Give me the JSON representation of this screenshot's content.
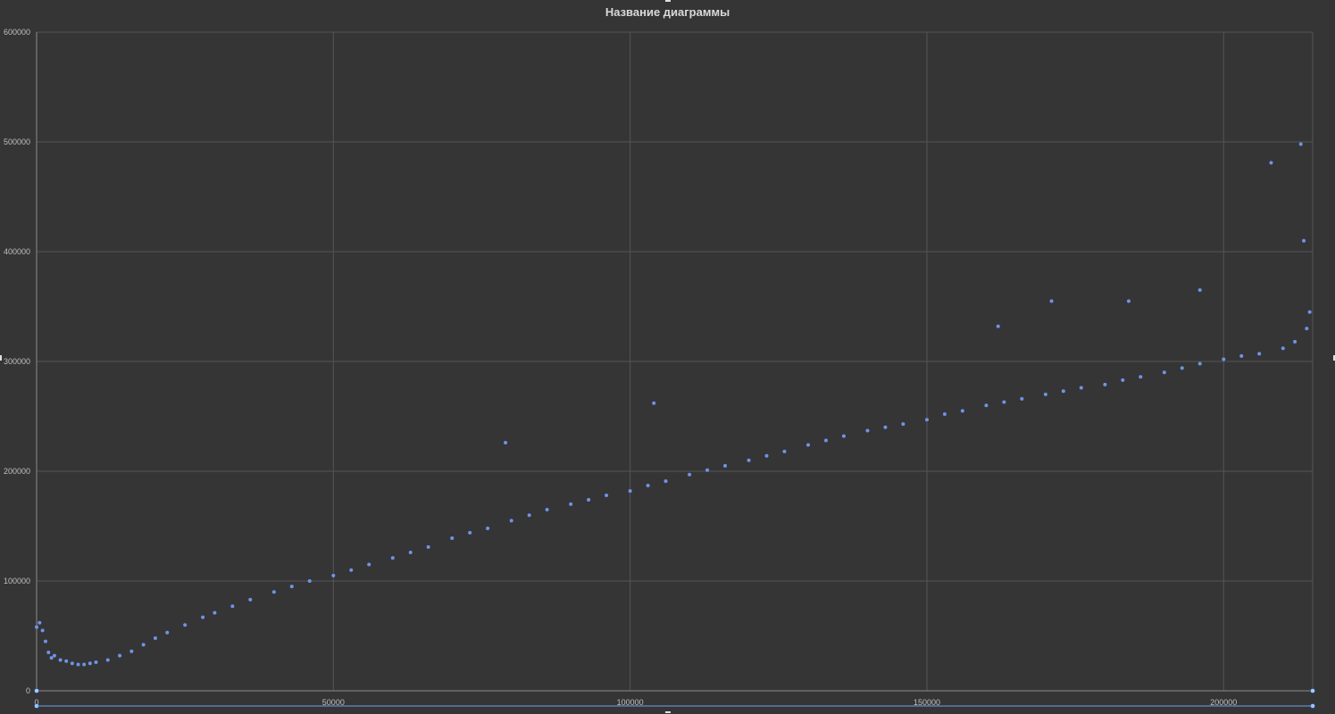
{
  "chart_data": {
    "type": "scatter",
    "title": "Название диаграммы",
    "xlabel": "",
    "ylabel": "",
    "xlim": [
      0,
      215000
    ],
    "ylim": [
      0,
      600000
    ],
    "x_ticks": [
      0,
      50000,
      100000,
      150000,
      200000
    ],
    "y_ticks": [
      0,
      100000,
      200000,
      300000,
      400000,
      500000,
      600000
    ],
    "x_tick_labels": [
      "0",
      "50000",
      "100000",
      "150000",
      "200000"
    ],
    "y_tick_labels": [
      "0",
      "100000",
      "200000",
      "300000",
      "400000",
      "500000",
      "600000"
    ],
    "grid": true,
    "legend": "none",
    "marker_color": "#6f94e8",
    "background_color": "#353535",
    "series": [
      {
        "x": [
          0,
          500,
          1000,
          1500,
          2000,
          2500,
          3000,
          4000,
          5000,
          6000,
          7000,
          8000,
          9000,
          10000,
          12000,
          14000,
          16000,
          18000,
          20000,
          22000,
          25000,
          28000,
          30000,
          33000,
          36000,
          40000,
          43000,
          46000,
          50000,
          53000,
          56000,
          60000,
          63000,
          66000,
          70000,
          73000,
          76000,
          80000,
          83000,
          86000,
          90000,
          93000,
          96000,
          100000,
          103000,
          106000,
          110000,
          113000,
          116000,
          120000,
          123000,
          126000,
          130000,
          133000,
          136000,
          140000,
          143000,
          146000,
          150000,
          153000,
          156000,
          160000,
          163000,
          166000,
          170000,
          173000,
          176000,
          180000,
          183000,
          186000,
          190000,
          193000,
          196000,
          200000,
          203000,
          206000,
          210000,
          212000,
          214000,
          214500,
          79000,
          104000,
          162000,
          171000,
          184000,
          196000,
          208000,
          213000,
          213500
        ],
        "y": [
          58000,
          62000,
          55000,
          45000,
          35000,
          30000,
          32000,
          28000,
          27000,
          25000,
          24000,
          24000,
          25000,
          26000,
          28000,
          32000,
          36000,
          42000,
          48000,
          53000,
          60000,
          67000,
          71000,
          77000,
          83000,
          90000,
          95000,
          100000,
          105000,
          110000,
          115000,
          121000,
          126000,
          131000,
          139000,
          144000,
          148000,
          155000,
          160000,
          165000,
          170000,
          174000,
          178000,
          182000,
          187000,
          191000,
          197000,
          201000,
          205000,
          210000,
          214000,
          218000,
          224000,
          228000,
          232000,
          237000,
          240000,
          243000,
          247000,
          252000,
          255000,
          260000,
          263000,
          266000,
          270000,
          273000,
          276000,
          279000,
          283000,
          286000,
          290000,
          294000,
          298000,
          302000,
          305000,
          307000,
          312000,
          318000,
          330000,
          345000,
          226000,
          262000,
          332000,
          355000,
          355000,
          365000,
          481000,
          498000,
          410000
        ]
      }
    ]
  }
}
